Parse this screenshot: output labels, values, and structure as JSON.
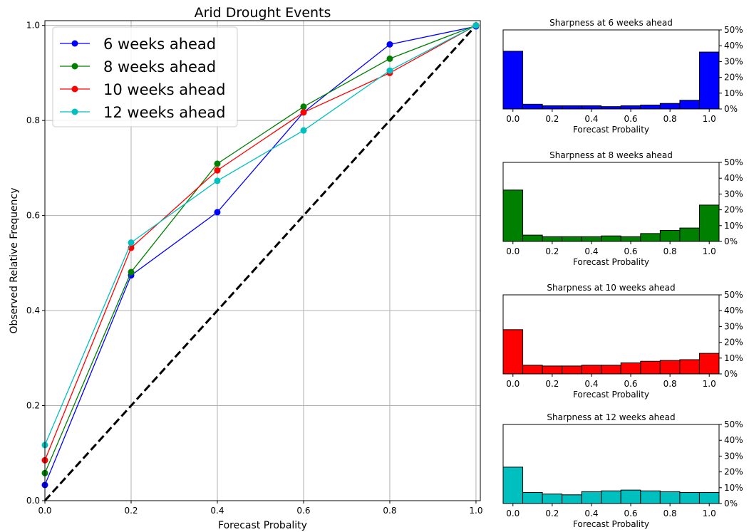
{
  "chart_data": [
    {
      "type": "line",
      "title": "Arid Drought Events",
      "xlabel": "Forecast Probality",
      "ylabel": "Observed Relative Frequency",
      "xlim": [
        0,
        1.01
      ],
      "ylim": [
        0,
        1.01
      ],
      "xticks": [
        "0.0",
        "0.2",
        "0.4",
        "0.6",
        "0.8",
        "1.0"
      ],
      "yticks": [
        "0.0",
        "0.2",
        "0.4",
        "0.6",
        "0.8",
        "1.0"
      ],
      "grid": true,
      "legend_position": "upper-left",
      "reference_line": {
        "from": [
          0,
          0
        ],
        "to": [
          1,
          1
        ],
        "style": "dashed",
        "color": "#000000"
      },
      "x": [
        0.0,
        0.2,
        0.4,
        0.6,
        0.8,
        1.0
      ],
      "series": [
        {
          "name": "6 weeks ahead",
          "color": "#0000ff",
          "values": [
            0.033,
            0.474,
            0.607,
            0.817,
            0.96,
            0.998
          ]
        },
        {
          "name": "8 weeks ahead",
          "color": "#008000",
          "values": [
            0.058,
            0.481,
            0.709,
            0.829,
            0.93,
            1.0
          ]
        },
        {
          "name": "10 weeks ahead",
          "color": "#ff0000",
          "values": [
            0.085,
            0.532,
            0.695,
            0.817,
            0.9,
            1.0
          ]
        },
        {
          "name": "12 weeks ahead",
          "color": "#00bfbf",
          "values": [
            0.117,
            0.543,
            0.673,
            0.779,
            0.905,
            1.0
          ]
        }
      ]
    },
    {
      "type": "bar",
      "title": "Sharpness at 6 weeks ahead",
      "xlabel": "Forecast Probality",
      "color": "#0000ff",
      "bin_edges": [
        0.0,
        0.1,
        0.2,
        0.3,
        0.4,
        0.5,
        0.6,
        0.7,
        0.8,
        0.9,
        1.0
      ],
      "values": [
        36.5,
        3.0,
        2.0,
        2.0,
        2.0,
        1.5,
        2.0,
        2.5,
        3.5,
        5.5,
        36.0
      ],
      "ylim": [
        0,
        50
      ],
      "xticks": [
        "0.0",
        "0.2",
        "0.4",
        "0.6",
        "0.8",
        "1.0"
      ],
      "yticks": [
        "0%",
        "10%",
        "20%",
        "30%",
        "40%",
        "50%"
      ]
    },
    {
      "type": "bar",
      "title": "Sharpness at 8 weeks ahead",
      "xlabel": "Forecast Probality",
      "color": "#008000",
      "bin_edges": [
        0.0,
        0.1,
        0.2,
        0.3,
        0.4,
        0.5,
        0.6,
        0.7,
        0.8,
        0.9,
        1.0
      ],
      "values": [
        32.5,
        4.0,
        3.0,
        3.0,
        3.0,
        3.5,
        3.0,
        5.0,
        7.0,
        8.5,
        23.0
      ],
      "ylim": [
        0,
        50
      ],
      "xticks": [
        "0.0",
        "0.2",
        "0.4",
        "0.6",
        "0.8",
        "1.0"
      ],
      "yticks": [
        "0%",
        "10%",
        "20%",
        "30%",
        "40%",
        "50%"
      ]
    },
    {
      "type": "bar",
      "title": "Sharpness at 10 weeks ahead",
      "xlabel": "Forecast Probality",
      "color": "#ff0000",
      "bin_edges": [
        0.0,
        0.1,
        0.2,
        0.3,
        0.4,
        0.5,
        0.6,
        0.7,
        0.8,
        0.9,
        1.0
      ],
      "values": [
        28.0,
        5.5,
        5.0,
        5.0,
        5.5,
        5.5,
        7.0,
        8.0,
        8.5,
        9.0,
        13.0
      ],
      "ylim": [
        0,
        50
      ],
      "xticks": [
        "0.0",
        "0.2",
        "0.4",
        "0.6",
        "0.8",
        "1.0"
      ],
      "yticks": [
        "0%",
        "10%",
        "20%",
        "30%",
        "40%",
        "50%"
      ]
    },
    {
      "type": "bar",
      "title": "Sharpness at 12 weeks ahead",
      "xlabel": "Forecast Probality",
      "color": "#00bfbf",
      "bin_edges": [
        0.0,
        0.1,
        0.2,
        0.3,
        0.4,
        0.5,
        0.6,
        0.7,
        0.8,
        0.9,
        1.0
      ],
      "values": [
        23.0,
        7.0,
        6.0,
        5.5,
        7.5,
        8.0,
        8.5,
        8.0,
        7.5,
        7.0,
        7.0
      ],
      "ylim": [
        0,
        50
      ],
      "xticks": [
        "0.0",
        "0.2",
        "0.4",
        "0.6",
        "0.8",
        "1.0"
      ],
      "yticks": [
        "0%",
        "10%",
        "20%",
        "30%",
        "40%",
        "50%"
      ]
    }
  ]
}
